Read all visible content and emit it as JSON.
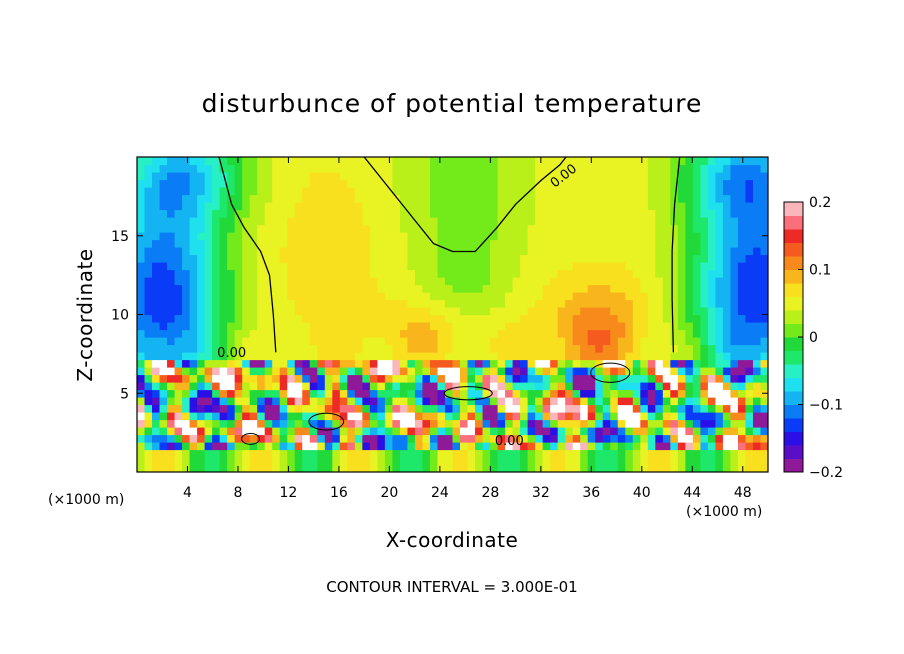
{
  "chart_data": {
    "type": "heatmap",
    "title": "disturbunce of potential temperature",
    "xlabel": "X-coordinate",
    "ylabel": "Z-coordinate",
    "x_unit": "(×1000 m)",
    "x_unit_right": "(×1000 m)",
    "xlim": [
      0,
      50
    ],
    "ylim": [
      0,
      20
    ],
    "x_ticks": [
      4,
      8,
      12,
      16,
      20,
      24,
      28,
      32,
      36,
      40,
      44,
      48
    ],
    "y_ticks": [
      5,
      10,
      15
    ],
    "colorbar": {
      "range": [
        -0.2,
        0.2
      ],
      "tick_values": [
        0.2,
        0.1,
        0,
        -0.1,
        -0.2
      ],
      "tick_labels": [
        "0.2",
        "0.1",
        "0",
        "−0.1",
        "−0.2"
      ],
      "colors": [
        "#8e1a9a",
        "#5a0fc7",
        "#2a10e6",
        "#0a3cf7",
        "#0a7cf5",
        "#14b4f2",
        "#1fe0ee",
        "#27f0c4",
        "#1ee86a",
        "#22d93a",
        "#73ea1a",
        "#b9f01a",
        "#e9f323",
        "#f8e01f",
        "#f8b51c",
        "#f78a1a",
        "#f55b1e",
        "#ee2a26",
        "#fb6e7c",
        "#fbb6bb"
      ]
    },
    "contour_label": "0.00",
    "note": "CONTOUR INTERVAL = 3.000E-01",
    "grid": false
  }
}
